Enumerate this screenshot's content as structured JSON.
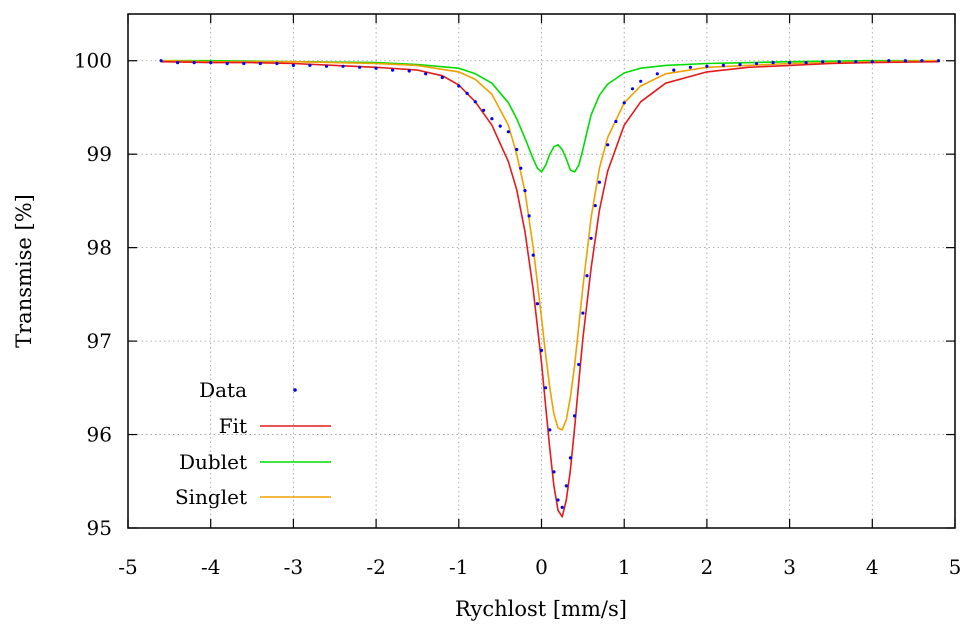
{
  "chart_data": {
    "type": "scatter",
    "title": "",
    "xlabel": "Rychlost [mm/s]",
    "ylabel": "Transmise [%]",
    "xlim": [
      -5,
      5
    ],
    "ylim": [
      95,
      100.5
    ],
    "xticks": [
      -5,
      -4,
      -3,
      -2,
      -1,
      0,
      1,
      2,
      3,
      4,
      5
    ],
    "xtick_labels": [
      "-5",
      "-4",
      "-3",
      "-2",
      "-1",
      "0",
      "1",
      "2",
      "3",
      "4",
      "5"
    ],
    "yticks": [
      95,
      96,
      97,
      98,
      99,
      100
    ],
    "ytick_labels": [
      "95",
      "96",
      "97",
      "98",
      "99",
      "100"
    ],
    "grid": true,
    "legend_position": "bottom-left",
    "series": [
      {
        "name": "Data",
        "kind": "points",
        "color": "#0000ee",
        "x": [
          -4.6,
          -4.4,
          -4.2,
          -4.0,
          -3.8,
          -3.6,
          -3.4,
          -3.2,
          -3.0,
          -2.8,
          -2.6,
          -2.4,
          -2.2,
          -2.0,
          -1.8,
          -1.6,
          -1.4,
          -1.2,
          -1.0,
          -0.9,
          -0.8,
          -0.7,
          -0.6,
          -0.5,
          -0.4,
          -0.3,
          -0.25,
          -0.2,
          -0.15,
          -0.1,
          -0.05,
          0.0,
          0.05,
          0.1,
          0.15,
          0.2,
          0.25,
          0.3,
          0.35,
          0.4,
          0.45,
          0.5,
          0.55,
          0.6,
          0.65,
          0.7,
          0.8,
          0.9,
          1.0,
          1.1,
          1.2,
          1.4,
          1.6,
          1.8,
          2.0,
          2.2,
          2.4,
          2.6,
          2.8,
          3.0,
          3.2,
          3.4,
          3.6,
          3.8,
          4.0,
          4.2,
          4.4,
          4.6,
          4.8
        ],
        "y": [
          100.0,
          99.98,
          99.98,
          99.98,
          99.97,
          99.97,
          99.97,
          99.97,
          99.95,
          99.95,
          99.94,
          99.94,
          99.93,
          99.92,
          99.9,
          99.89,
          99.86,
          99.82,
          99.73,
          99.65,
          99.56,
          99.47,
          99.38,
          99.3,
          99.24,
          99.05,
          98.85,
          98.61,
          98.34,
          97.92,
          97.4,
          96.9,
          96.5,
          96.05,
          95.6,
          95.3,
          95.22,
          95.45,
          95.75,
          96.2,
          96.75,
          97.3,
          97.7,
          98.1,
          98.45,
          98.7,
          99.1,
          99.35,
          99.55,
          99.7,
          99.78,
          99.86,
          99.9,
          99.93,
          99.94,
          99.95,
          99.96,
          99.97,
          99.98,
          99.98,
          99.98,
          99.99,
          99.99,
          99.99,
          99.99,
          100.0,
          100.0,
          100.0,
          100.0
        ]
      },
      {
        "name": "Fit",
        "kind": "line",
        "color": "#e41a1c",
        "x": [
          -4.6,
          -4.0,
          -3.5,
          -3.0,
          -2.5,
          -2.0,
          -1.5,
          -1.2,
          -1.0,
          -0.8,
          -0.6,
          -0.4,
          -0.3,
          -0.2,
          -0.1,
          0.0,
          0.05,
          0.1,
          0.15,
          0.2,
          0.25,
          0.3,
          0.35,
          0.4,
          0.45,
          0.5,
          0.6,
          0.7,
          0.8,
          1.0,
          1.2,
          1.5,
          2.0,
          2.5,
          3.0,
          3.5,
          4.0,
          4.8
        ],
        "y": [
          99.99,
          99.98,
          99.98,
          99.97,
          99.95,
          99.93,
          99.9,
          99.84,
          99.74,
          99.56,
          99.31,
          98.92,
          98.62,
          98.17,
          97.55,
          96.77,
          96.31,
          95.85,
          95.45,
          95.19,
          95.12,
          95.3,
          95.62,
          96.07,
          96.55,
          97.03,
          97.78,
          98.4,
          98.82,
          99.31,
          99.56,
          99.76,
          99.88,
          99.93,
          99.95,
          99.97,
          99.98,
          99.99
        ]
      },
      {
        "name": "Dublet",
        "kind": "line",
        "color": "#00dd00",
        "x": [
          -4.6,
          -4.0,
          -3.0,
          -2.0,
          -1.5,
          -1.0,
          -0.8,
          -0.6,
          -0.4,
          -0.3,
          -0.2,
          -0.1,
          -0.05,
          0.0,
          0.05,
          0.1,
          0.15,
          0.2,
          0.25,
          0.3,
          0.35,
          0.4,
          0.45,
          0.5,
          0.55,
          0.6,
          0.7,
          0.8,
          1.0,
          1.2,
          1.5,
          2.0,
          3.0,
          4.0,
          4.8
        ],
        "y": [
          100.0,
          100.0,
          99.99,
          99.98,
          99.96,
          99.92,
          99.86,
          99.76,
          99.55,
          99.38,
          99.17,
          98.95,
          98.85,
          98.81,
          98.88,
          99.0,
          99.08,
          99.1,
          99.05,
          98.95,
          98.83,
          98.81,
          98.88,
          99.05,
          99.24,
          99.42,
          99.63,
          99.75,
          99.87,
          99.92,
          99.95,
          99.97,
          99.99,
          100.0,
          100.0
        ]
      },
      {
        "name": "Singlet",
        "kind": "line",
        "color": "#f0a000",
        "x": [
          -4.6,
          -4.0,
          -3.0,
          -2.0,
          -1.5,
          -1.0,
          -0.8,
          -0.6,
          -0.4,
          -0.3,
          -0.2,
          -0.1,
          0.0,
          0.05,
          0.1,
          0.15,
          0.2,
          0.25,
          0.3,
          0.35,
          0.4,
          0.45,
          0.5,
          0.6,
          0.7,
          0.8,
          1.0,
          1.2,
          1.5,
          2.0,
          3.0,
          4.0,
          4.8
        ],
        "y": [
          100.0,
          99.99,
          99.99,
          99.97,
          99.95,
          99.88,
          99.8,
          99.64,
          99.31,
          99.0,
          98.6,
          98.0,
          97.25,
          96.86,
          96.5,
          96.22,
          96.07,
          96.05,
          96.16,
          96.4,
          96.74,
          97.15,
          97.58,
          98.32,
          98.85,
          99.18,
          99.55,
          99.73,
          99.86,
          99.93,
          99.97,
          99.99,
          100.0
        ]
      }
    ]
  }
}
